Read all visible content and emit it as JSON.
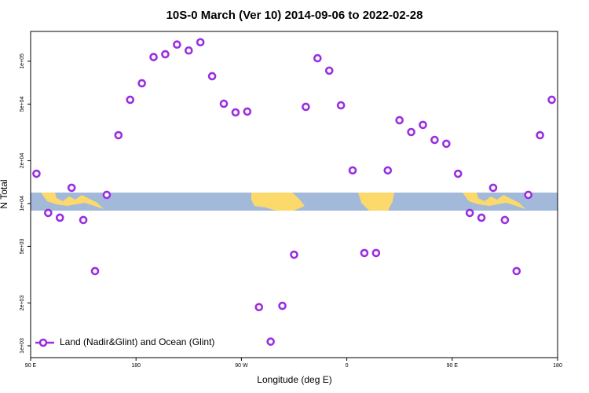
{
  "chart_data": {
    "type": "scatter",
    "title": "10S-0 March (Ver 10)   2014-09-06 to 2022-02-28",
    "xlabel": "Longitude (deg E)",
    "ylabel": "N Total",
    "xlim": [
      90,
      540
    ],
    "xticks": [
      {
        "value": 90,
        "label": "90 E"
      },
      180,
      {
        "value": 270,
        "label": "90 W"
      },
      {
        "value": 360,
        "label": "0"
      },
      {
        "value": 450,
        "label": "90 E"
      },
      {
        "value": 540,
        "label": "180"
      }
    ],
    "ylim": [
      826,
      162000
    ],
    "log_y": true,
    "yticks": [
      {
        "value": 1000,
        "label": "1e+03"
      },
      {
        "value": 2000,
        "label": "2e+03"
      },
      {
        "value": 5000,
        "label": "5e+03"
      },
      {
        "value": 10000,
        "label": "1e+04"
      },
      {
        "value": 20000,
        "label": "2e+04"
      },
      {
        "value": 50000,
        "label": "5e+04"
      },
      {
        "value": 100000,
        "label": "1e+05"
      }
    ],
    "legend_position": "lower left",
    "series": [
      {
        "name": "Land (Nadir&Glint) and Ocean (Glint)",
        "color": "#9a2fe0",
        "x": [
          95,
          105,
          115,
          125,
          135,
          145,
          155,
          165,
          175,
          185,
          195,
          205,
          215,
          225,
          235,
          245,
          255,
          265,
          275,
          285,
          295,
          305,
          315,
          325,
          335,
          345,
          355,
          365,
          375,
          385,
          395,
          405,
          415,
          425,
          435,
          445,
          455,
          465,
          475,
          485,
          495,
          505,
          515,
          525,
          535
        ],
        "values": [
          16200,
          8590,
          7950,
          12900,
          7660,
          3350,
          11500,
          30200,
          53600,
          70000,
          107000,
          112000,
          131000,
          119000,
          136000,
          78500,
          50300,
          43700,
          44300,
          1870,
          1070,
          1910,
          4370,
          47800,
          105000,
          85900,
          49000,
          17100,
          4490,
          4490,
          17100,
          38500,
          31800,
          35700,
          28000,
          26300,
          16200,
          8590,
          7950,
          12900,
          7660,
          3350,
          11500,
          30200,
          53600
        ]
      }
    ]
  }
}
